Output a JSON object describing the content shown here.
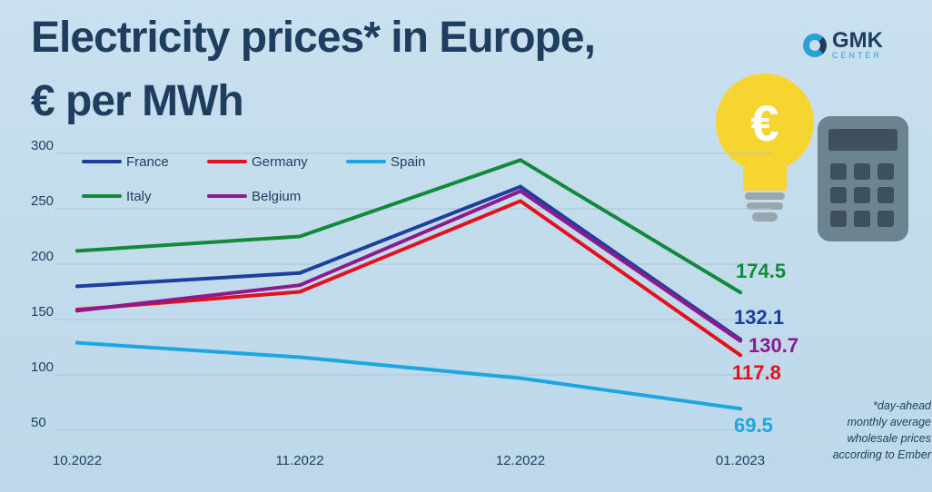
{
  "chart_data": {
    "type": "line",
    "title": "Electricity prices* in Europe,",
    "subtitle": "€ per MWh",
    "categories": [
      "10.2022",
      "11.2022",
      "12.2022",
      "01.2023"
    ],
    "ylim": [
      50,
      300
    ],
    "yticks": [
      300,
      250,
      200,
      150,
      100,
      50
    ],
    "grid": true,
    "legend": "top-left",
    "series": [
      {
        "name": "France",
        "color": "#1f3f9c",
        "values": [
          180,
          192,
          270,
          132.1
        ],
        "end_label": "132.1"
      },
      {
        "name": "Germany",
        "color": "#e3101e",
        "values": [
          159,
          175,
          257,
          117.8
        ],
        "end_label": "117.8"
      },
      {
        "name": "Spain",
        "color": "#1ea6e2",
        "values": [
          129,
          116,
          97,
          69.5
        ],
        "end_label": "69.5"
      },
      {
        "name": "Italy",
        "color": "#138a3a",
        "values": [
          212,
          225,
          294,
          174.5
        ],
        "end_label": "174.5"
      },
      {
        "name": "Belgium",
        "color": "#8e1a8e",
        "values": [
          158,
          181,
          266,
          130.7
        ],
        "end_label": "130.7"
      }
    ],
    "footnote": [
      "*day-ahead",
      "monthly average",
      "wholesale prices",
      "according to Ember"
    ]
  },
  "logo": {
    "name": "GMK",
    "sub": "CENTER"
  }
}
